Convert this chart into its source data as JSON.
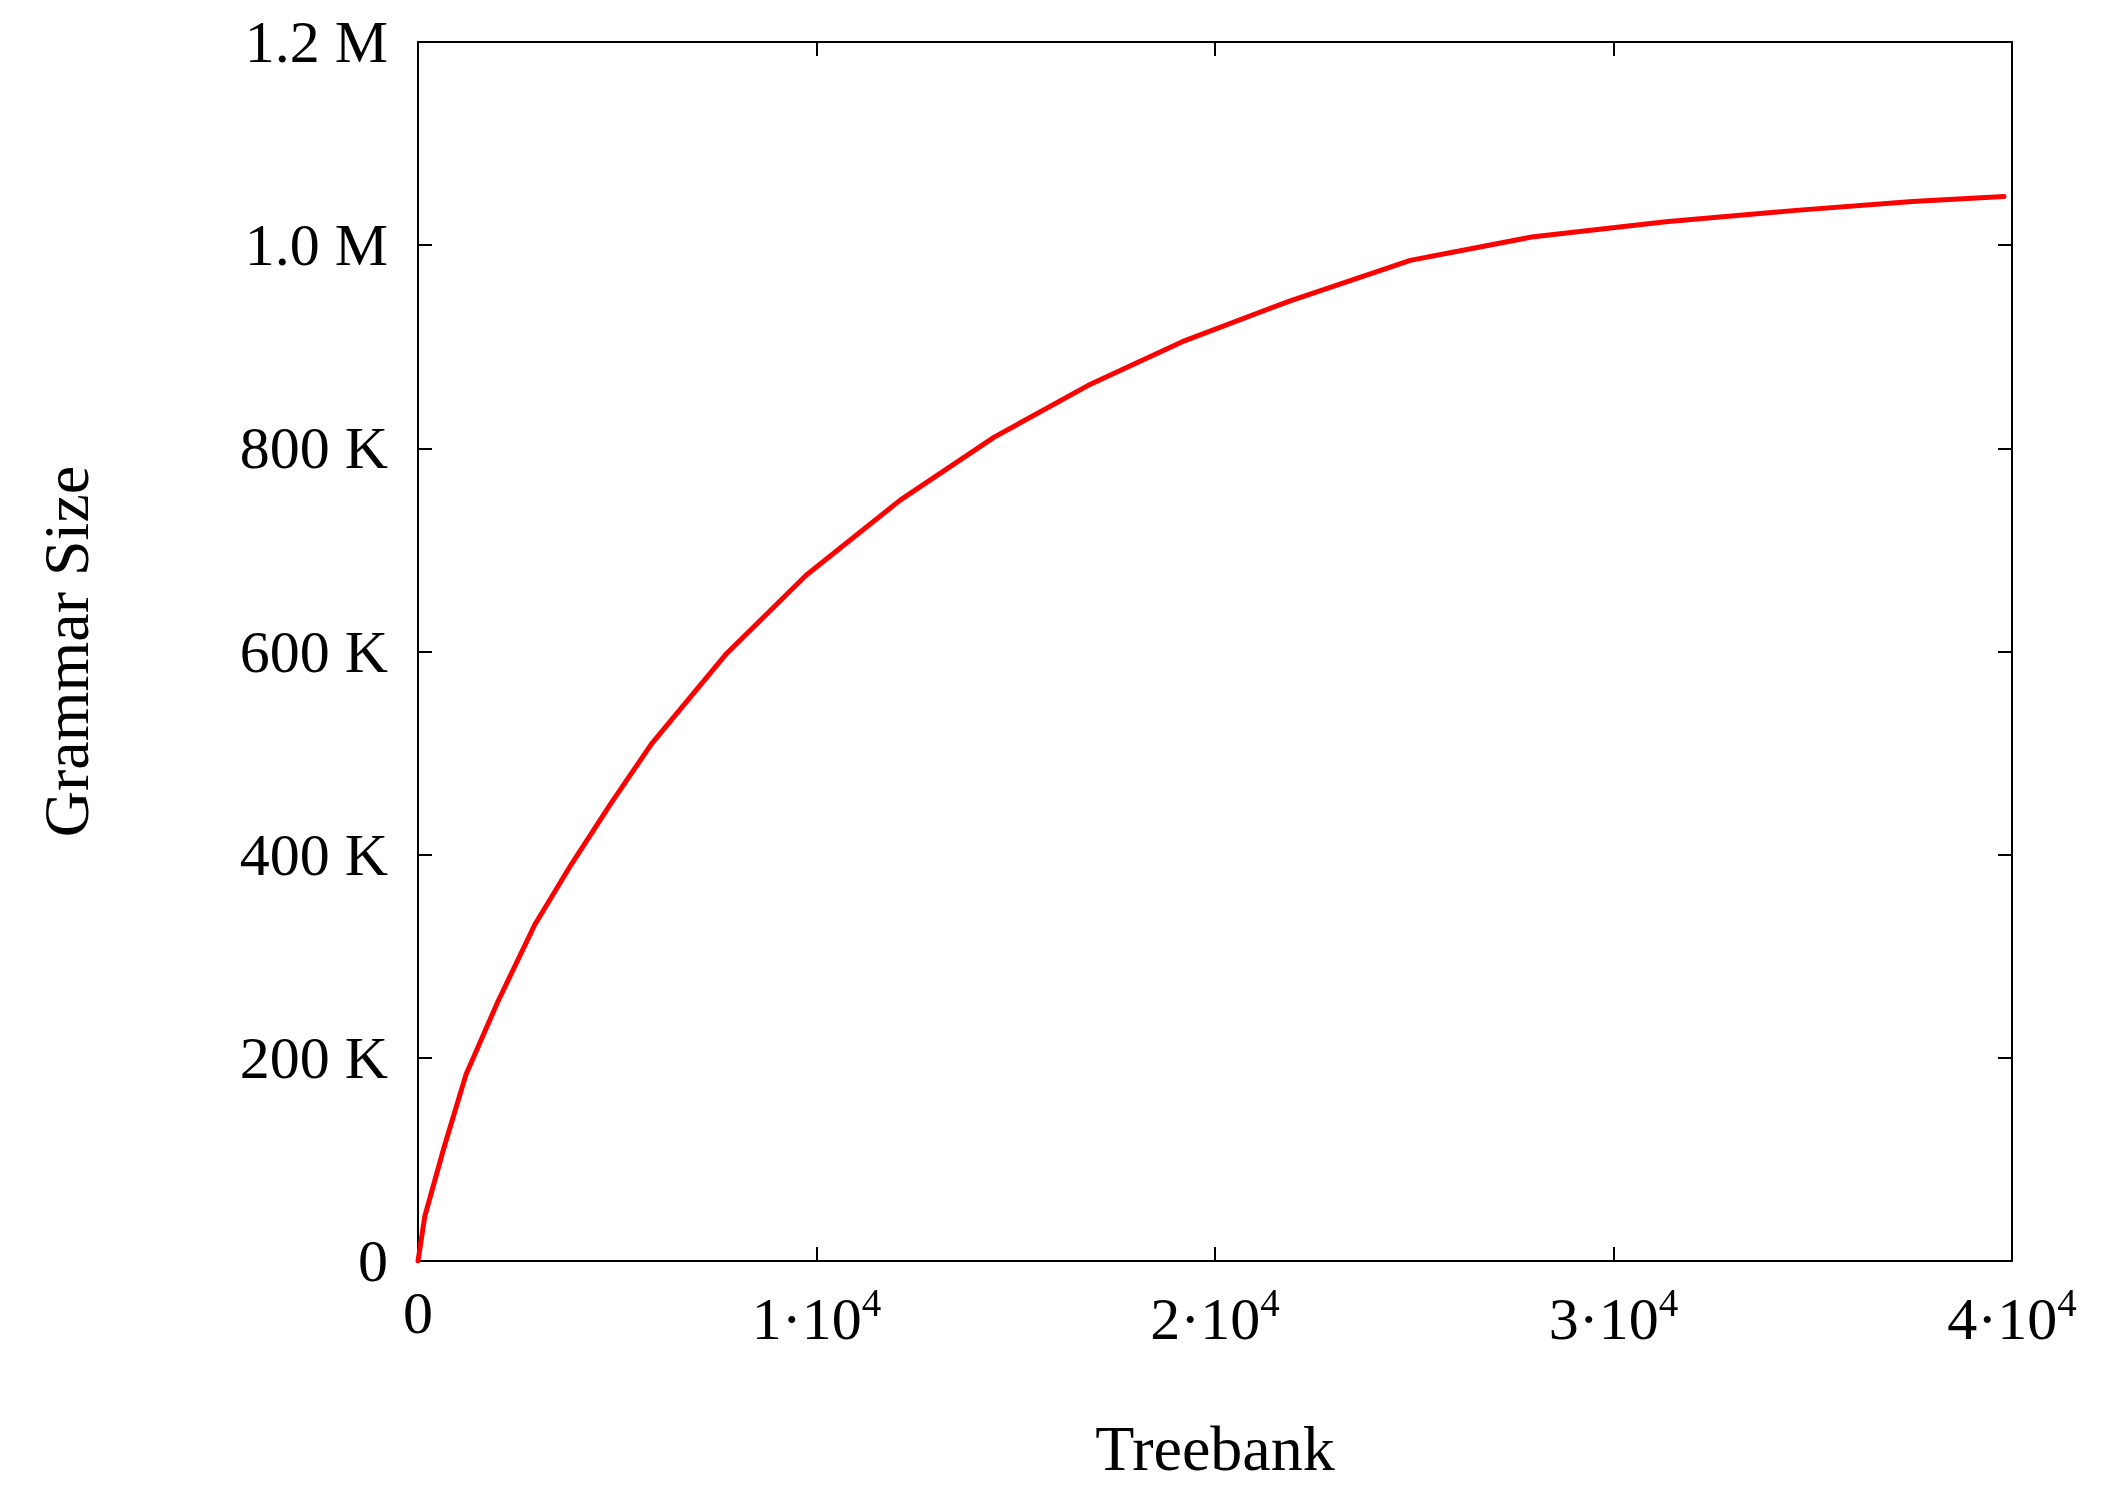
{
  "chart_data": {
    "type": "line",
    "xlabel": "Treebank",
    "ylabel": "Grammar Size",
    "series": [
      {
        "color": "#ff0000",
        "x": [
          0,
          170,
          640,
          1200,
          2000,
          2930,
          3840,
          4850,
          5860,
          7720,
          9740,
          12100,
          14460,
          16820,
          19180,
          21870,
          24900,
          27940,
          31310,
          34500,
          37500,
          39800
        ],
        "values": [
          0,
          44000,
          110000,
          183000,
          255000,
          331000,
          390000,
          451000,
          509000,
          597000,
          675000,
          749000,
          811000,
          862000,
          905000,
          945000,
          985000,
          1008000,
          1023000,
          1034000,
          1043000,
          1048000
        ]
      }
    ],
    "xlim": [
      0,
      40000
    ],
    "xticks": [
      0,
      {
        "value": 10000,
        "label": "1·10$^{4}$"
      },
      {
        "value": 20000,
        "label": "2·10$^{4}$"
      },
      {
        "value": 30000,
        "label": "3·10$^{4}$"
      },
      {
        "value": 40000,
        "label": "4·10$^{4}$"
      }
    ],
    "ylim": [
      0,
      1200000
    ],
    "yticks": [
      0,
      {
        "value": 200000,
        "label": "200 K"
      },
      {
        "value": 400000,
        "label": "400 K"
      },
      {
        "value": 600000,
        "label": "600 K"
      },
      {
        "value": 800000,
        "label": "800 K"
      },
      {
        "value": 1000000,
        "label": "1.0 M"
      },
      {
        "value": 1200000,
        "label": "1.2 M"
      }
    ],
    "grid": false,
    "marker": "none",
    "line_style": "solid"
  }
}
